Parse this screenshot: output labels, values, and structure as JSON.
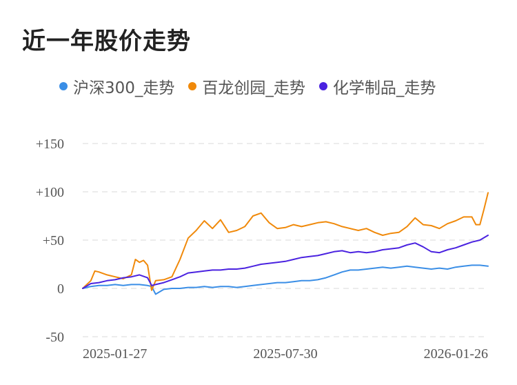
{
  "title": "近一年股价走势",
  "legend": [
    {
      "label": "沪深300_走势",
      "color": "#3a8ee6"
    },
    {
      "label": "百龙创园_走势",
      "color": "#f0890a"
    },
    {
      "label": "化学制品_走势",
      "color": "#4a22e0"
    }
  ],
  "chart_data": {
    "type": "line",
    "title": "近一年股价走势",
    "xlabel": "",
    "ylabel": "",
    "ylim": [
      -50,
      150
    ],
    "yticks": [
      150,
      100,
      50,
      0,
      -50
    ],
    "ytick_labels": [
      "+150",
      "+100",
      "+50",
      "0",
      "-50"
    ],
    "xlim": [
      0,
      100
    ],
    "xticks": [
      {
        "pos": 0,
        "label": "2025-01-27"
      },
      {
        "pos": 50,
        "label": "2025-07-30"
      },
      {
        "pos": 100,
        "label": "2026-01-26"
      }
    ],
    "grid": true,
    "legend_position": "top",
    "series": [
      {
        "name": "沪深300_走势",
        "color": "#3a8ee6",
        "x": [
          0,
          2,
          4,
          6,
          8,
          10,
          12,
          14,
          16,
          17,
          18,
          20,
          22,
          24,
          26,
          28,
          30,
          32,
          34,
          36,
          38,
          40,
          42,
          44,
          46,
          48,
          50,
          52,
          54,
          56,
          58,
          60,
          62,
          64,
          66,
          68,
          70,
          72,
          74,
          76,
          78,
          80,
          82,
          84,
          86,
          88,
          90,
          92,
          94,
          96,
          98,
          100
        ],
        "y": [
          0,
          2,
          3,
          3,
          4,
          3,
          4,
          4,
          3,
          2,
          -6,
          -1,
          0,
          0,
          1,
          1,
          2,
          1,
          2,
          2,
          1,
          2,
          3,
          4,
          5,
          6,
          6,
          7,
          8,
          8,
          9,
          11,
          14,
          17,
          19,
          19,
          20,
          21,
          22,
          21,
          22,
          23,
          22,
          21,
          20,
          21,
          20,
          22,
          23,
          24,
          24,
          23
        ]
      },
      {
        "name": "百龙创园_走势",
        "color": "#f0890a",
        "x": [
          0,
          2,
          3,
          4,
          6,
          8,
          10,
          12,
          13,
          14,
          15,
          16,
          17,
          18,
          20,
          22,
          24,
          26,
          28,
          30,
          32,
          34,
          36,
          38,
          40,
          42,
          44,
          46,
          48,
          50,
          52,
          54,
          56,
          58,
          60,
          62,
          64,
          66,
          68,
          70,
          72,
          74,
          76,
          78,
          80,
          82,
          84,
          86,
          88,
          90,
          92,
          94,
          96,
          97,
          98,
          99,
          100
        ],
        "y": [
          0,
          8,
          18,
          17,
          14,
          12,
          10,
          14,
          30,
          27,
          29,
          24,
          -2,
          8,
          9,
          12,
          30,
          52,
          60,
          70,
          62,
          71,
          58,
          60,
          64,
          75,
          78,
          68,
          62,
          63,
          66,
          64,
          66,
          68,
          69,
          67,
          64,
          62,
          60,
          62,
          58,
          55,
          57,
          58,
          64,
          73,
          66,
          65,
          62,
          67,
          70,
          74,
          74,
          66,
          66,
          82,
          99
        ]
      },
      {
        "name": "化学制品_走势",
        "color": "#4a22e0",
        "x": [
          0,
          2,
          4,
          6,
          8,
          10,
          12,
          14,
          16,
          17,
          18,
          20,
          22,
          24,
          26,
          28,
          30,
          32,
          34,
          36,
          38,
          40,
          42,
          44,
          46,
          48,
          50,
          52,
          54,
          56,
          58,
          60,
          62,
          64,
          66,
          68,
          70,
          72,
          74,
          76,
          78,
          80,
          82,
          84,
          86,
          88,
          90,
          92,
          94,
          96,
          98,
          100
        ],
        "y": [
          0,
          5,
          6,
          8,
          9,
          11,
          12,
          14,
          11,
          3,
          4,
          6,
          9,
          12,
          16,
          17,
          18,
          19,
          19,
          20,
          20,
          21,
          23,
          25,
          26,
          27,
          28,
          30,
          32,
          33,
          34,
          36,
          38,
          39,
          37,
          38,
          37,
          38,
          40,
          41,
          42,
          45,
          47,
          43,
          38,
          37,
          40,
          42,
          45,
          48,
          50,
          55
        ]
      }
    ]
  }
}
